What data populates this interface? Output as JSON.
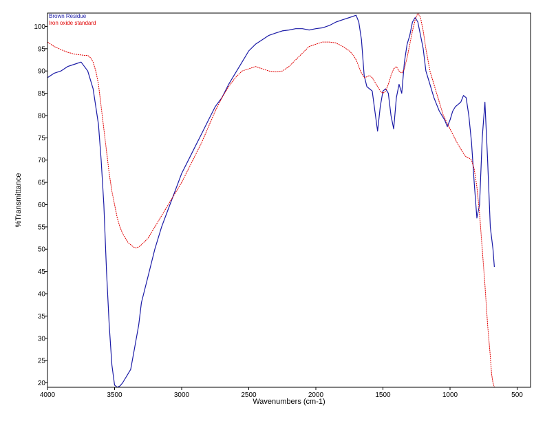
{
  "chart_data": {
    "type": "line",
    "title": "",
    "xlabel": "Wavenumbers (cm-1)",
    "ylabel": "%Transmittance",
    "xlim": [
      4000,
      400
    ],
    "ylim": [
      19,
      103
    ],
    "x_reversed": true,
    "grid": false,
    "legend_position": "top-left",
    "x_ticks": [
      4000,
      3500,
      3000,
      2500,
      2000,
      1500,
      1000,
      500
    ],
    "y_ticks": [
      20,
      25,
      30,
      35,
      40,
      45,
      50,
      55,
      60,
      65,
      70,
      75,
      80,
      85,
      90,
      95,
      100
    ],
    "series": [
      {
        "name": "Brown Residue",
        "color": "#1a1aa6",
        "x": [
          4000,
          3950,
          3900,
          3850,
          3800,
          3750,
          3700,
          3680,
          3660,
          3640,
          3620,
          3600,
          3580,
          3560,
          3540,
          3520,
          3500,
          3480,
          3460,
          3440,
          3420,
          3400,
          3380,
          3350,
          3320,
          3300,
          3250,
          3200,
          3150,
          3100,
          3050,
          3000,
          2950,
          2900,
          2850,
          2800,
          2750,
          2700,
          2650,
          2600,
          2550,
          2500,
          2450,
          2400,
          2350,
          2300,
          2250,
          2200,
          2150,
          2100,
          2050,
          2000,
          1950,
          1900,
          1850,
          1800,
          1750,
          1700,
          1680,
          1660,
          1640,
          1620,
          1600,
          1580,
          1560,
          1540,
          1520,
          1500,
          1480,
          1460,
          1440,
          1420,
          1400,
          1380,
          1360,
          1340,
          1320,
          1300,
          1280,
          1260,
          1240,
          1220,
          1200,
          1180,
          1150,
          1120,
          1100,
          1080,
          1060,
          1040,
          1020,
          1000,
          980,
          960,
          940,
          920,
          900,
          880,
          860,
          840,
          820,
          800,
          780,
          760,
          740,
          720,
          700,
          680,
          670
        ],
        "y": [
          88.5,
          89.5,
          90,
          91,
          91.5,
          92,
          90,
          88,
          86,
          82,
          78,
          70,
          60,
          45,
          33,
          24,
          19.5,
          19,
          19.3,
          20,
          21,
          22,
          23,
          28,
          33,
          38,
          44,
          50,
          55,
          59,
          63,
          67,
          70,
          73,
          76,
          79,
          82,
          84,
          87,
          89.5,
          92,
          94.5,
          96,
          97,
          98,
          98.5,
          99,
          99.2,
          99.5,
          99.5,
          99.2,
          99.5,
          99.7,
          100.2,
          101,
          101.5,
          102,
          102.5,
          101,
          97,
          89,
          86.5,
          86,
          85.5,
          81,
          76.5,
          82,
          85.5,
          86,
          85,
          80,
          77,
          84,
          87,
          85,
          92,
          96,
          98,
          101,
          102,
          101,
          98,
          95,
          90,
          87,
          84,
          82.5,
          81,
          80,
          79,
          77.5,
          79,
          81,
          82,
          82.5,
          83,
          84.5,
          84,
          80,
          74,
          65,
          57,
          60,
          75,
          83,
          70,
          55,
          50,
          46
        ]
      },
      {
        "name": "Iron oxide standard",
        "color": "#e00000",
        "x": [
          4000,
          3950,
          3900,
          3850,
          3800,
          3750,
          3720,
          3700,
          3680,
          3660,
          3640,
          3620,
          3600,
          3580,
          3560,
          3540,
          3520,
          3500,
          3480,
          3460,
          3440,
          3420,
          3400,
          3380,
          3360,
          3340,
          3320,
          3300,
          3250,
          3200,
          3150,
          3100,
          3050,
          3000,
          2950,
          2900,
          2850,
          2800,
          2750,
          2700,
          2650,
          2600,
          2550,
          2500,
          2450,
          2400,
          2350,
          2300,
          2250,
          2200,
          2150,
          2100,
          2050,
          2000,
          1950,
          1900,
          1850,
          1800,
          1750,
          1720,
          1700,
          1680,
          1660,
          1640,
          1620,
          1600,
          1580,
          1560,
          1540,
          1520,
          1500,
          1480,
          1460,
          1440,
          1420,
          1400,
          1380,
          1360,
          1340,
          1320,
          1300,
          1280,
          1260,
          1240,
          1220,
          1200,
          1180,
          1150,
          1100,
          1050,
          1000,
          950,
          900,
          880,
          860,
          840,
          820,
          800,
          780,
          760,
          740,
          720,
          700,
          690,
          680,
          670
        ],
        "y": [
          96.5,
          95.5,
          94.8,
          94.2,
          93.8,
          93.6,
          93.5,
          93.5,
          93,
          92,
          90,
          87,
          82,
          77,
          72,
          67,
          63,
          60,
          57,
          55,
          53.5,
          52.5,
          51.5,
          51,
          50.5,
          50.3,
          50.5,
          51,
          52.5,
          55,
          57.5,
          60,
          62.5,
          65,
          68,
          71,
          74,
          77.5,
          81,
          84,
          86.5,
          88.5,
          90,
          90.5,
          91,
          90.5,
          90,
          89.8,
          90,
          91,
          92.5,
          94,
          95.5,
          96,
          96.5,
          96.5,
          96.3,
          95.5,
          94.5,
          93.5,
          92.5,
          91,
          89.5,
          88.5,
          88.7,
          89,
          88.5,
          87.5,
          86.5,
          85.5,
          85,
          85.5,
          87,
          89,
          90.5,
          91,
          90,
          89.5,
          90.5,
          93,
          96,
          99,
          101.5,
          103,
          102,
          99,
          95,
          90,
          85,
          80,
          77,
          74,
          71.5,
          70.7,
          70.5,
          70,
          68,
          64,
          58,
          50,
          42,
          33,
          26,
          22,
          20,
          19
        ]
      }
    ]
  }
}
